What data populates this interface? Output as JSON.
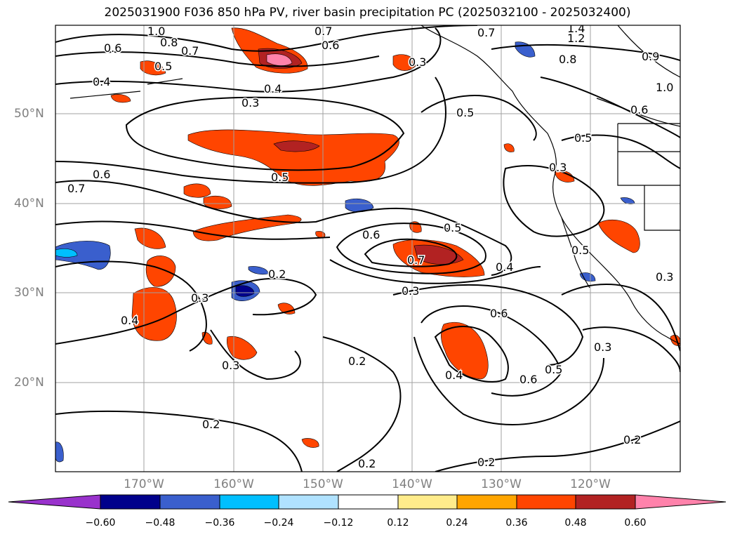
{
  "title": "2025031900 F036 850 hPa PV, river basin precipitation PC (2025032100 - 2025032400)",
  "map": {
    "lat_labels": [
      "50°N",
      "40°N",
      "30°N",
      "20°N"
    ],
    "lon_labels": [
      "170°W",
      "160°W",
      "150°W",
      "140°W",
      "130°W",
      "120°W"
    ],
    "contour_labels": [
      "1.0",
      "0.8",
      "0.7",
      "0.6",
      "0.6",
      "0.5",
      "0.4",
      "0.3",
      "0.4",
      "0.3",
      "0.5",
      "0.6",
      "0.7",
      "0.6",
      "0.7",
      "0.5",
      "0.4",
      "0.3",
      "0.2",
      "0.4",
      "0.3",
      "0.3",
      "0.2",
      "0.4",
      "0.6",
      "0.6",
      "0.5",
      "0.3",
      "0.2",
      "0.2",
      "0.2",
      "0.2",
      "0.5",
      "0.3",
      "0.5",
      "1.2",
      "1.4",
      "0.7",
      "0.8",
      "0.6",
      "0.9",
      "1.0",
      "0.7",
      "0.3",
      "0.5"
    ]
  },
  "colorbar": {
    "ticks": [
      "−0.60",
      "−0.48",
      "−0.36",
      "−0.24",
      "−0.12",
      "0.12",
      "0.24",
      "0.36",
      "0.48",
      "0.60"
    ],
    "colors": [
      "#9932cc",
      "#00008b",
      "#3a5fcd",
      "#00bfff",
      "#b0e2ff",
      "#ffffff",
      "#ffec8b",
      "#ffa500",
      "#ff4500",
      "#b22222",
      "#ff82ab"
    ]
  }
}
